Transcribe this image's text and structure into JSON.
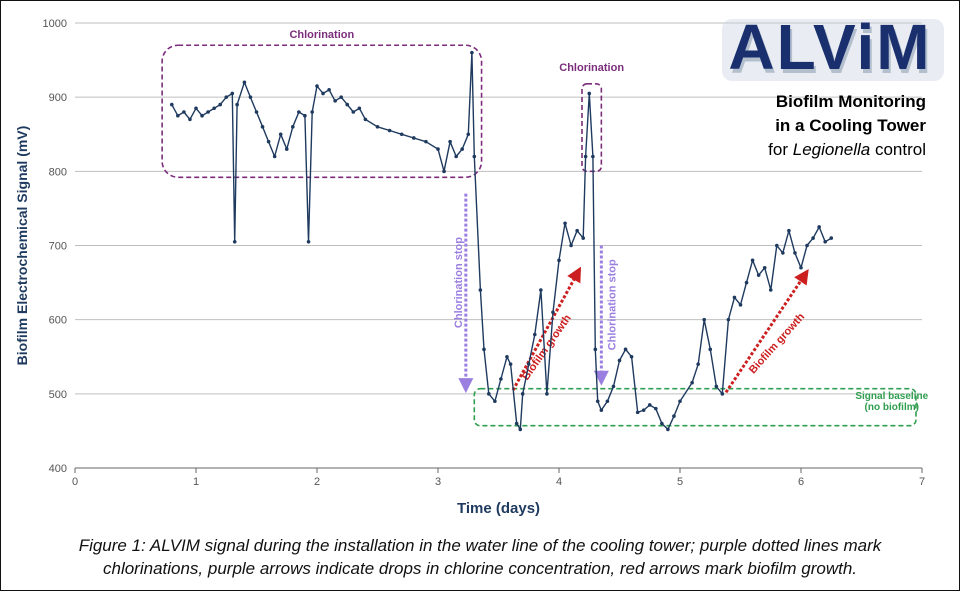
{
  "logo_text": "ALViM",
  "subtitle": {
    "line1": "Biofilm Monitoring",
    "line2": "in a Cooling Tower",
    "line3_pre": "for ",
    "line3_italic": "Legionella",
    "line3_post": " control"
  },
  "caption": {
    "line1": "Figure 1: ALVIM signal during the installation in the water line of the cooling tower; purple dotted lines mark",
    "line2": "chlorinations, purple arrows indicate drops in chlorine concentration, red arrows mark biofilm growth."
  },
  "chart_data": {
    "type": "line",
    "xlabel": "Time (days)",
    "ylabel": "Biofilm Electrochemical Signal (mV)",
    "xlim": [
      0,
      7
    ],
    "ylim": [
      400,
      1000
    ],
    "x_ticks": [
      0,
      1,
      2,
      3,
      4,
      5,
      6,
      7
    ],
    "y_ticks": [
      400,
      500,
      600,
      700,
      800,
      900,
      1000
    ],
    "grid": "horizontal",
    "colors": {
      "series": "#1f3a5f",
      "chlorination": "#7b2d7b",
      "stop_arrow": "#9b7fe0",
      "growth_arrow": "#cc1f1f",
      "baseline": "#2e9e4f"
    },
    "series": [
      {
        "points": [
          [
            0.8,
            890
          ],
          [
            0.85,
            875
          ],
          [
            0.9,
            880
          ],
          [
            0.95,
            870
          ],
          [
            1.0,
            885
          ],
          [
            1.05,
            875
          ],
          [
            1.1,
            880
          ],
          [
            1.15,
            885
          ],
          [
            1.2,
            890
          ],
          [
            1.25,
            900
          ],
          [
            1.3,
            905
          ],
          [
            1.32,
            705
          ],
          [
            1.34,
            890
          ],
          [
            1.4,
            920
          ],
          [
            1.45,
            900
          ],
          [
            1.5,
            880
          ],
          [
            1.55,
            860
          ],
          [
            1.6,
            840
          ],
          [
            1.65,
            820
          ],
          [
            1.7,
            850
          ],
          [
            1.75,
            830
          ],
          [
            1.8,
            860
          ],
          [
            1.85,
            880
          ],
          [
            1.9,
            875
          ],
          [
            1.93,
            705
          ],
          [
            1.96,
            880
          ],
          [
            2.0,
            915
          ],
          [
            2.05,
            905
          ],
          [
            2.1,
            910
          ],
          [
            2.15,
            895
          ],
          [
            2.2,
            900
          ],
          [
            2.25,
            890
          ],
          [
            2.3,
            880
          ],
          [
            2.35,
            885
          ],
          [
            2.4,
            870
          ],
          [
            2.5,
            860
          ],
          [
            2.6,
            855
          ],
          [
            2.7,
            850
          ],
          [
            2.8,
            845
          ],
          [
            2.9,
            840
          ],
          [
            3.0,
            830
          ],
          [
            3.05,
            800
          ],
          [
            3.1,
            840
          ],
          [
            3.15,
            820
          ],
          [
            3.2,
            830
          ],
          [
            3.25,
            850
          ],
          [
            3.28,
            960
          ],
          [
            3.3,
            820
          ],
          [
            3.35,
            640
          ],
          [
            3.38,
            560
          ],
          [
            3.42,
            500
          ],
          [
            3.47,
            490
          ],
          [
            3.52,
            520
          ],
          [
            3.57,
            550
          ],
          [
            3.6,
            540
          ],
          [
            3.65,
            460
          ],
          [
            3.68,
            452
          ],
          [
            3.7,
            500
          ],
          [
            3.75,
            540
          ],
          [
            3.8,
            580
          ],
          [
            3.85,
            640
          ],
          [
            3.9,
            500
          ],
          [
            3.95,
            610
          ],
          [
            4.0,
            680
          ],
          [
            4.05,
            730
          ],
          [
            4.1,
            700
          ],
          [
            4.15,
            720
          ],
          [
            4.2,
            710
          ],
          [
            4.22,
            820
          ],
          [
            4.25,
            905
          ],
          [
            4.28,
            820
          ],
          [
            4.3,
            560
          ],
          [
            4.32,
            490
          ],
          [
            4.35,
            478
          ],
          [
            4.4,
            490
          ],
          [
            4.45,
            510
          ],
          [
            4.5,
            545
          ],
          [
            4.55,
            560
          ],
          [
            4.6,
            550
          ],
          [
            4.65,
            475
          ],
          [
            4.7,
            478
          ],
          [
            4.75,
            485
          ],
          [
            4.8,
            480
          ],
          [
            4.85,
            460
          ],
          [
            4.9,
            452
          ],
          [
            4.95,
            470
          ],
          [
            5.0,
            490
          ],
          [
            5.1,
            515
          ],
          [
            5.15,
            540
          ],
          [
            5.2,
            600
          ],
          [
            5.25,
            560
          ],
          [
            5.3,
            510
          ],
          [
            5.35,
            500
          ],
          [
            5.4,
            600
          ],
          [
            5.45,
            630
          ],
          [
            5.5,
            620
          ],
          [
            5.55,
            650
          ],
          [
            5.6,
            680
          ],
          [
            5.65,
            660
          ],
          [
            5.7,
            670
          ],
          [
            5.75,
            640
          ],
          [
            5.8,
            700
          ],
          [
            5.85,
            690
          ],
          [
            5.9,
            720
          ],
          [
            5.95,
            690
          ],
          [
            6.0,
            670
          ],
          [
            6.05,
            700
          ],
          [
            6.1,
            710
          ],
          [
            6.15,
            725
          ],
          [
            6.2,
            705
          ],
          [
            6.25,
            710
          ]
        ]
      }
    ],
    "annotations": {
      "chlorination_labels": [
        "Chlorination",
        "Chlorination"
      ],
      "stop_labels": [
        "Chlorination stop",
        "Chlorination stop"
      ],
      "growth_labels": [
        "Biofilm growth",
        "Biofilm growth"
      ],
      "baseline_line1": "Signal baseline",
      "baseline_line2": "(no biofilm)"
    }
  }
}
